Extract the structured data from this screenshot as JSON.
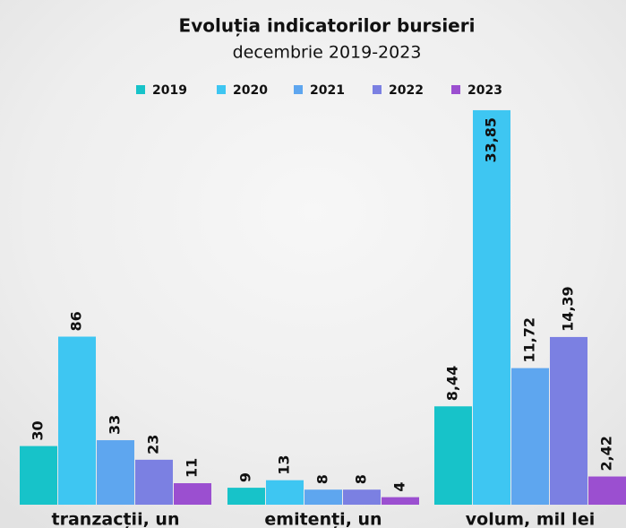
{
  "chart_data": {
    "type": "bar",
    "title": "Evoluția indicatorilor bursieri",
    "subtitle": "decembrie 2019-2023",
    "categories": [
      "tranzacții, un",
      "emitenți, un",
      "volum, mil lei"
    ],
    "series": [
      {
        "name": "2019",
        "color": "#17c3c9",
        "values": [
          30,
          9,
          8.44
        ],
        "value_labels": [
          "30",
          "9",
          "8,44"
        ]
      },
      {
        "name": "2020",
        "color": "#3ec6f2",
        "values": [
          86,
          13,
          33.85
        ],
        "value_labels": [
          "86",
          "13",
          "33,85"
        ]
      },
      {
        "name": "2021",
        "color": "#5ea6ef",
        "values": [
          33,
          8,
          11.72
        ],
        "value_labels": [
          "33",
          "8",
          "11,72"
        ]
      },
      {
        "name": "2022",
        "color": "#7b80e2",
        "values": [
          23,
          8,
          14.39
        ],
        "value_labels": [
          "23",
          "8",
          "14,39"
        ]
      },
      {
        "name": "2023",
        "color": "#9b4fd0",
        "values": [
          11,
          4,
          2.42
        ],
        "value_labels": [
          "11",
          "4",
          "2,42"
        ]
      }
    ],
    "legend": "top"
  }
}
